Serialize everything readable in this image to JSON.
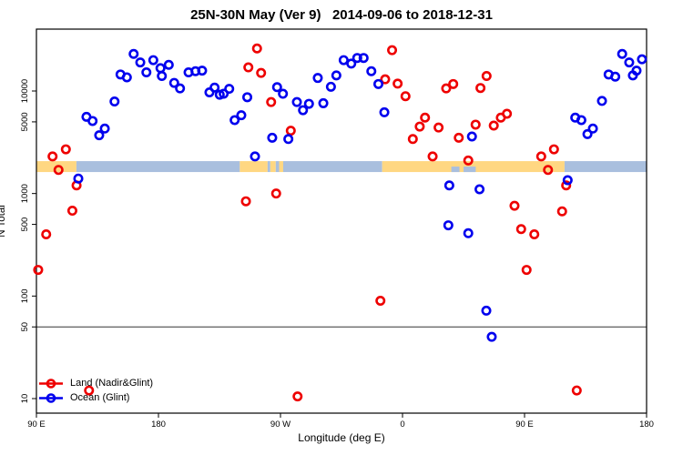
{
  "title": "25N-30N May (Ver 9)   2014-09-06 to 2018-12-31",
  "legend": {
    "items": [
      {
        "label": "Land (Nadir&Glint)",
        "color": "#ee0000"
      },
      {
        "label": "Ocean (Glint)",
        "color": "#0000ee"
      }
    ]
  },
  "chart_data": {
    "type": "scatter",
    "title": "25N-30N May (Ver 9)   2014-09-06 to 2018-12-31",
    "xlabel": "Longitude (deg E)",
    "ylabel": "N Total",
    "x_axis": {
      "min": 90,
      "max": 540,
      "ticks": [
        {
          "value": 90,
          "label": "90 E"
        },
        {
          "value": 180,
          "label": "180"
        },
        {
          "value": 270,
          "label": "90 W"
        },
        {
          "value": 360,
          "label": "0"
        },
        {
          "value": 450,
          "label": "90 E"
        },
        {
          "value": 540,
          "label": "180"
        }
      ]
    },
    "y_axis": {
      "scale": "log10",
      "ticks": [
        10,
        50,
        100,
        500,
        1000,
        5000,
        10000
      ],
      "value_at_top": 40000,
      "value_at_bottom": 7.2
    },
    "reference_line_value": 50,
    "coastline_band": {
      "value_top": 2070,
      "value_bottom": 1620,
      "land_color": "#ffd782",
      "ocean_color": "#a9bfde",
      "segments": [
        {
          "lon_start": 90,
          "lon_end": 119.5,
          "surface": "land"
        },
        {
          "lon_start": 119.5,
          "lon_end": 240,
          "surface": "ocean"
        },
        {
          "lon_start": 240,
          "lon_end": 260.5,
          "surface": "land"
        },
        {
          "lon_start": 260.5,
          "lon_end": 262.5,
          "surface": "ocean"
        },
        {
          "lon_start": 262.5,
          "lon_end": 266.5,
          "surface": "land"
        },
        {
          "lon_start": 266.5,
          "lon_end": 269,
          "surface": "ocean"
        },
        {
          "lon_start": 269,
          "lon_end": 272,
          "surface": "land"
        },
        {
          "lon_start": 272,
          "lon_end": 345,
          "surface": "ocean"
        },
        {
          "lon_start": 345,
          "lon_end": 479.5,
          "surface": "land"
        },
        {
          "lon_start": 479.5,
          "lon_end": 540,
          "surface": "ocean"
        }
      ],
      "bottom_notches": [
        {
          "lon_start": 396,
          "lon_end": 402,
          "surface": "ocean"
        },
        {
          "lon_start": 405,
          "lon_end": 414,
          "surface": "ocean"
        }
      ]
    },
    "series": [
      {
        "name": "Land (Nadir&Glint)",
        "color": "#ee0000",
        "points": [
          [
            101.9,
            2300
          ],
          [
            111.7,
            2700
          ],
          [
            106.3,
            1700
          ],
          [
            119.6,
            1200
          ],
          [
            116.5,
            680
          ],
          [
            97.2,
            400
          ],
          [
            91.3,
            180
          ],
          [
            128.8,
            12
          ],
          [
            246.3,
            17000
          ],
          [
            252.7,
            26000
          ],
          [
            255.7,
            15000
          ],
          [
            263.1,
            7800
          ],
          [
            244.5,
            840
          ],
          [
            266.8,
            1000
          ],
          [
            277.6,
            4100
          ],
          [
            282.6,
            10.5
          ],
          [
            352.3,
            25000
          ],
          [
            347.2,
            13000
          ],
          [
            356.4,
            11800
          ],
          [
            362.2,
            8900
          ],
          [
            343.7,
            90
          ],
          [
            372.7,
            4500
          ],
          [
            376.6,
            5500
          ],
          [
            386.6,
            4400
          ],
          [
            392.2,
            10600
          ],
          [
            397.4,
            11700
          ],
          [
            401.5,
            3500
          ],
          [
            367.6,
            3400
          ],
          [
            382.2,
            2300
          ],
          [
            408.5,
            2100
          ],
          [
            422.0,
            14000
          ],
          [
            417.5,
            10700
          ],
          [
            437.0,
            6000
          ],
          [
            432.5,
            5500
          ],
          [
            427.3,
            4600
          ],
          [
            413.9,
            4700
          ],
          [
            462.3,
            2300
          ],
          [
            471.7,
            2700
          ],
          [
            467.3,
            1700
          ],
          [
            480.7,
            1200
          ],
          [
            442.6,
            760
          ],
          [
            477.7,
            670
          ],
          [
            447.5,
            450
          ],
          [
            457.2,
            400
          ],
          [
            451.5,
            180
          ],
          [
            488.5,
            12
          ]
        ]
      },
      {
        "name": "Ocean (Glint)",
        "color": "#0000ee",
        "points": [
          [
            152.0,
            14500
          ],
          [
            156.7,
            13600
          ],
          [
            161.7,
            23000
          ],
          [
            166.6,
            19000
          ],
          [
            171.1,
            15200
          ],
          [
            176.2,
            20000
          ],
          [
            181.5,
            16700
          ],
          [
            182.5,
            14000
          ],
          [
            187.6,
            18000
          ],
          [
            191.6,
            12000
          ],
          [
            195.9,
            10600
          ],
          [
            202.2,
            15200
          ],
          [
            207.3,
            15600
          ],
          [
            212.2,
            15800
          ],
          [
            217.6,
            9700
          ],
          [
            221.4,
            10800
          ],
          [
            225.2,
            9200
          ],
          [
            228.1,
            9400
          ],
          [
            232.2,
            10500
          ],
          [
            147.6,
            7900
          ],
          [
            126.9,
            5600
          ],
          [
            131.4,
            5100
          ],
          [
            136.3,
            3700
          ],
          [
            140.4,
            4300
          ],
          [
            236.2,
            5200
          ],
          [
            241.1,
            5800
          ],
          [
            245.5,
            8700
          ],
          [
            120.9,
            1400
          ],
          [
            267.5,
            10900
          ],
          [
            271.8,
            9400
          ],
          [
            282.1,
            7800
          ],
          [
            286.6,
            6500
          ],
          [
            291.0,
            7500
          ],
          [
            297.5,
            13400
          ],
          [
            301.6,
            7600
          ],
          [
            307.2,
            11000
          ],
          [
            311.2,
            14200
          ],
          [
            316.6,
            20000
          ],
          [
            322.2,
            18500
          ],
          [
            326.6,
            21000
          ],
          [
            331.3,
            21000
          ],
          [
            337.0,
            15600
          ],
          [
            342.2,
            11700
          ],
          [
            346.6,
            6200
          ],
          [
            263.9,
            3500
          ],
          [
            275.8,
            3400
          ],
          [
            251.2,
            2300
          ],
          [
            411.2,
            3600
          ],
          [
            522.0,
            23000
          ],
          [
            527.2,
            19000
          ],
          [
            536.6,
            20400
          ],
          [
            532.6,
            15800
          ],
          [
            512.0,
            14500
          ],
          [
            516.9,
            13800
          ],
          [
            529.9,
            14200
          ],
          [
            507.1,
            8000
          ],
          [
            487.4,
            5500
          ],
          [
            491.9,
            5200
          ],
          [
            500.4,
            4300
          ],
          [
            496.4,
            3800
          ],
          [
            394.5,
            1200
          ],
          [
            393.8,
            490
          ],
          [
            481.8,
            1350
          ],
          [
            416.8,
            1100
          ],
          [
            408.5,
            410
          ],
          [
            421.8,
            72
          ],
          [
            425.8,
            40
          ]
        ]
      }
    ]
  }
}
